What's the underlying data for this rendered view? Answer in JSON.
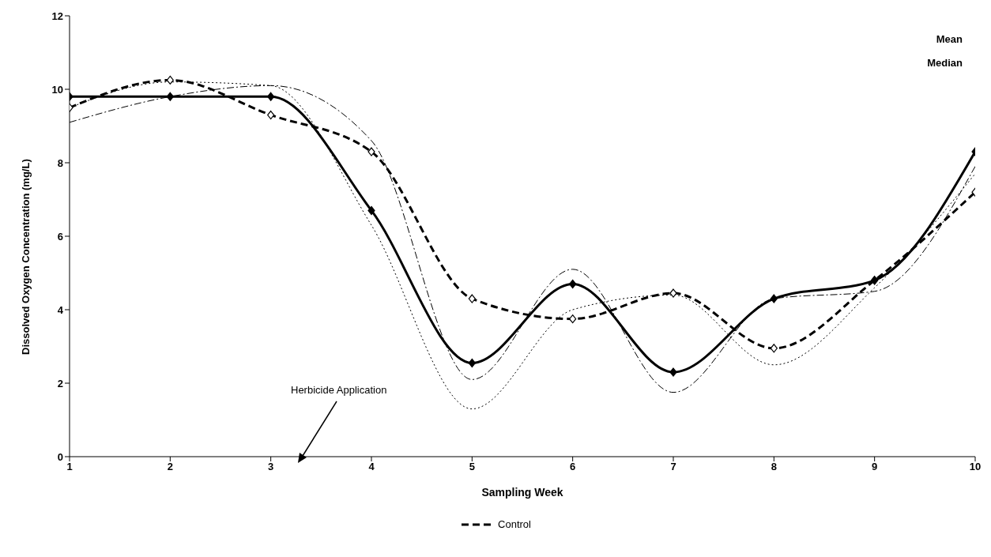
{
  "chart_data": {
    "type": "line",
    "xlabel": "Sampling Week",
    "ylabel": "Dissolved Oxygen Concentration (mg/L)",
    "x": [
      1,
      2,
      3,
      4,
      5,
      6,
      7,
      8,
      9,
      10
    ],
    "series": [
      {
        "name": "Control",
        "color": "#000000",
        "line_style": "dashed",
        "marker": "diamond",
        "values": [
          9.5,
          10.25,
          9.3,
          8.3,
          4.3,
          3.75,
          4.45,
          2.95,
          4.8,
          7.2
        ]
      },
      {
        "color": "#000000",
        "line_style": "solid",
        "marker": "diamond",
        "values": [
          9.8,
          9.8,
          9.8,
          6.7,
          2.55,
          4.7,
          2.3,
          4.3,
          4.8,
          8.3
        ]
      },
      {
        "color": "#000000",
        "line_style": "dotted",
        "marker": "none",
        "values": [
          9.5,
          10.2,
          10.1,
          6.3,
          1.3,
          4.0,
          4.4,
          2.5,
          4.6,
          7.7
        ]
      },
      {
        "color": "#000000",
        "line_style": "dashdot",
        "marker": "none",
        "values": [
          9.1,
          9.8,
          10.1,
          8.6,
          2.1,
          5.1,
          1.75,
          4.3,
          4.5,
          7.9
        ]
      }
    ],
    "xlim": [
      1,
      10
    ],
    "xticks": [
      1,
      2,
      3,
      4,
      5,
      6,
      7,
      8,
      9,
      10
    ],
    "ylim": [
      0,
      12
    ],
    "yticks": [
      0,
      2,
      4,
      6,
      8,
      10,
      12
    ],
    "grid": false,
    "legend": "bottom",
    "annotations": [
      "Herbicide Application",
      "Mean",
      "Median"
    ]
  }
}
